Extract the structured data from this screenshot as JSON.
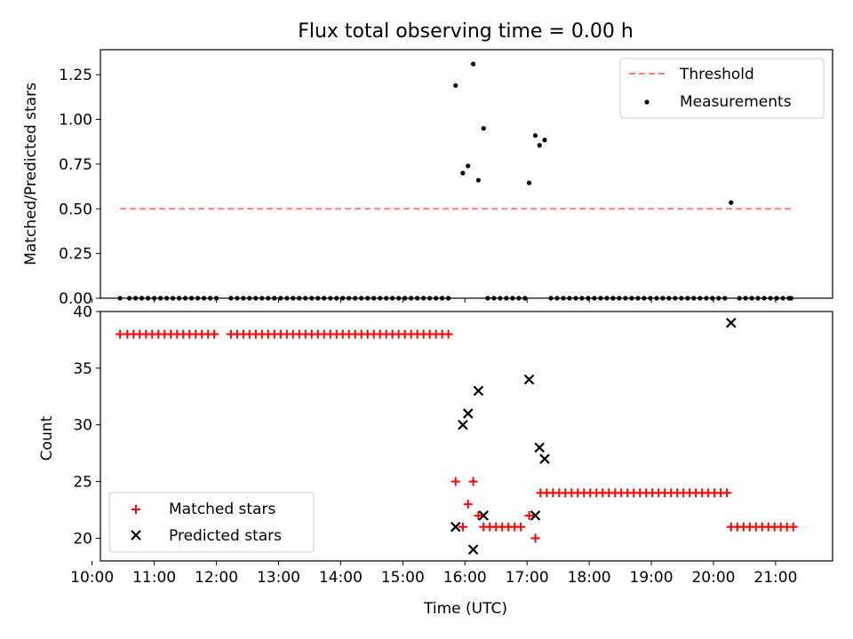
{
  "chart_data": [
    {
      "type": "scatter",
      "title": "Flux total observing time = 0.00 h",
      "xlabel": "",
      "ylabel": "Matched/Predicted stars",
      "ylim": [
        0,
        1.39
      ],
      "xlim": [
        "10:08",
        "21:55"
      ],
      "yticks": [
        "0.00",
        "0.25",
        "0.50",
        "0.75",
        "1.00",
        "1.25"
      ],
      "legend_position": "top-right",
      "series": [
        {
          "name": "Threshold",
          "style": "dashed-line",
          "color": "#ff7f7f",
          "points": [
            [
              "10:27",
              0.5
            ],
            [
              "21:15",
              0.5
            ]
          ]
        },
        {
          "name": "Measurements",
          "style": "dots",
          "color": "#000000",
          "points": [
            [
              "10:27",
              0
            ],
            [
              "10:36",
              0
            ],
            [
              "10:42",
              0
            ],
            [
              "10:48",
              0
            ],
            [
              "10:54",
              0
            ],
            [
              "11:00",
              0
            ],
            [
              "11:06",
              0
            ],
            [
              "11:12",
              0
            ],
            [
              "11:18",
              0
            ],
            [
              "11:24",
              0
            ],
            [
              "11:30",
              0
            ],
            [
              "11:36",
              0
            ],
            [
              "11:42",
              0
            ],
            [
              "11:48",
              0
            ],
            [
              "11:54",
              0
            ],
            [
              "12:00",
              0
            ],
            [
              "12:14",
              0
            ],
            [
              "12:20",
              0
            ],
            [
              "12:26",
              0
            ],
            [
              "12:32",
              0
            ],
            [
              "12:38",
              0
            ],
            [
              "12:44",
              0
            ],
            [
              "12:50",
              0
            ],
            [
              "12:56",
              0
            ],
            [
              "13:02",
              0
            ],
            [
              "13:08",
              0
            ],
            [
              "13:14",
              0
            ],
            [
              "13:20",
              0
            ],
            [
              "13:26",
              0
            ],
            [
              "13:32",
              0
            ],
            [
              "13:38",
              0
            ],
            [
              "13:44",
              0
            ],
            [
              "13:50",
              0
            ],
            [
              "13:56",
              0
            ],
            [
              "14:02",
              0
            ],
            [
              "14:08",
              0
            ],
            [
              "14:14",
              0
            ],
            [
              "14:20",
              0
            ],
            [
              "14:26",
              0
            ],
            [
              "14:32",
              0
            ],
            [
              "14:38",
              0
            ],
            [
              "14:44",
              0
            ],
            [
              "14:50",
              0
            ],
            [
              "14:56",
              0
            ],
            [
              "15:02",
              0
            ],
            [
              "15:08",
              0
            ],
            [
              "15:14",
              0
            ],
            [
              "15:20",
              0
            ],
            [
              "15:26",
              0
            ],
            [
              "15:32",
              0
            ],
            [
              "15:38",
              0
            ],
            [
              "15:44",
              0
            ],
            [
              "15:51",
              1.19
            ],
            [
              "15:58",
              0.7
            ],
            [
              "16:03",
              0.74
            ],
            [
              "16:08",
              1.31
            ],
            [
              "16:13",
              0.66
            ],
            [
              "16:18",
              0.95
            ],
            [
              "16:22",
              0
            ],
            [
              "16:28",
              0
            ],
            [
              "16:34",
              0
            ],
            [
              "16:40",
              0
            ],
            [
              "16:46",
              0
            ],
            [
              "16:52",
              0
            ],
            [
              "16:58",
              0
            ],
            [
              "17:02",
              0.645
            ],
            [
              "17:08",
              0.91
            ],
            [
              "17:12",
              0.855
            ],
            [
              "17:17",
              0.885
            ],
            [
              "17:23",
              0
            ],
            [
              "17:29",
              0
            ],
            [
              "17:35",
              0
            ],
            [
              "17:41",
              0
            ],
            [
              "17:47",
              0
            ],
            [
              "17:53",
              0
            ],
            [
              "17:59",
              0
            ],
            [
              "18:05",
              0
            ],
            [
              "18:11",
              0
            ],
            [
              "18:17",
              0
            ],
            [
              "18:23",
              0
            ],
            [
              "18:29",
              0
            ],
            [
              "18:35",
              0
            ],
            [
              "18:41",
              0
            ],
            [
              "18:47",
              0
            ],
            [
              "18:53",
              0
            ],
            [
              "18:59",
              0
            ],
            [
              "19:05",
              0
            ],
            [
              "19:11",
              0
            ],
            [
              "19:17",
              0
            ],
            [
              "19:23",
              0
            ],
            [
              "19:29",
              0
            ],
            [
              "19:35",
              0
            ],
            [
              "19:41",
              0
            ],
            [
              "19:47",
              0
            ],
            [
              "19:53",
              0
            ],
            [
              "19:59",
              0
            ],
            [
              "20:05",
              0
            ],
            [
              "20:11",
              0
            ],
            [
              "20:17",
              0.535
            ],
            [
              "20:25",
              0
            ],
            [
              "20:31",
              0
            ],
            [
              "20:37",
              0
            ],
            [
              "20:43",
              0
            ],
            [
              "20:49",
              0
            ],
            [
              "20:55",
              0
            ],
            [
              "21:01",
              0
            ],
            [
              "21:07",
              0
            ],
            [
              "21:13",
              0
            ],
            [
              "21:15",
              0
            ]
          ]
        }
      ]
    },
    {
      "type": "scatter",
      "title": "",
      "xlabel": "Time (UTC)",
      "ylabel": "Count",
      "ylim": [
        18,
        40
      ],
      "xlim": [
        "10:08",
        "21:55"
      ],
      "xticks": [
        "10:00",
        "11:00",
        "12:00",
        "13:00",
        "14:00",
        "15:00",
        "16:00",
        "17:00",
        "18:00",
        "19:00",
        "20:00",
        "21:00"
      ],
      "yticks": [
        "20",
        "25",
        "30",
        "35",
        "40"
      ],
      "legend_position": "bottom-left",
      "series": [
        {
          "name": "Matched stars",
          "style": "plus",
          "color": "#ff0000",
          "points": [
            [
              "10:27",
              38
            ],
            [
              "10:34",
              38
            ],
            [
              "10:40",
              38
            ],
            [
              "10:46",
              38
            ],
            [
              "10:52",
              38
            ],
            [
              "10:58",
              38
            ],
            [
              "11:04",
              38
            ],
            [
              "11:10",
              38
            ],
            [
              "11:16",
              38
            ],
            [
              "11:22",
              38
            ],
            [
              "11:28",
              38
            ],
            [
              "11:34",
              38
            ],
            [
              "11:40",
              38
            ],
            [
              "11:46",
              38
            ],
            [
              "11:52",
              38
            ],
            [
              "11:58",
              38
            ],
            [
              "12:14",
              38
            ],
            [
              "12:20",
              38
            ],
            [
              "12:26",
              38
            ],
            [
              "12:32",
              38
            ],
            [
              "12:38",
              38
            ],
            [
              "12:44",
              38
            ],
            [
              "12:50",
              38
            ],
            [
              "12:56",
              38
            ],
            [
              "13:02",
              38
            ],
            [
              "13:08",
              38
            ],
            [
              "13:14",
              38
            ],
            [
              "13:20",
              38
            ],
            [
              "13:26",
              38
            ],
            [
              "13:32",
              38
            ],
            [
              "13:38",
              38
            ],
            [
              "13:44",
              38
            ],
            [
              "13:50",
              38
            ],
            [
              "13:56",
              38
            ],
            [
              "14:02",
              38
            ],
            [
              "14:08",
              38
            ],
            [
              "14:14",
              38
            ],
            [
              "14:20",
              38
            ],
            [
              "14:26",
              38
            ],
            [
              "14:32",
              38
            ],
            [
              "14:38",
              38
            ],
            [
              "14:44",
              38
            ],
            [
              "14:50",
              38
            ],
            [
              "14:56",
              38
            ],
            [
              "15:02",
              38
            ],
            [
              "15:08",
              38
            ],
            [
              "15:14",
              38
            ],
            [
              "15:20",
              38
            ],
            [
              "15:26",
              38
            ],
            [
              "15:32",
              38
            ],
            [
              "15:38",
              38
            ],
            [
              "15:44",
              38
            ],
            [
              "15:51",
              25
            ],
            [
              "15:58",
              21
            ],
            [
              "16:03",
              23
            ],
            [
              "16:08",
              25
            ],
            [
              "16:13",
              22
            ],
            [
              "16:18",
              21
            ],
            [
              "16:24",
              21
            ],
            [
              "16:30",
              21
            ],
            [
              "16:36",
              21
            ],
            [
              "16:42",
              21
            ],
            [
              "16:48",
              21
            ],
            [
              "16:54",
              21
            ],
            [
              "17:02",
              22
            ],
            [
              "17:08",
              20
            ],
            [
              "17:13",
              24
            ],
            [
              "17:19",
              24
            ],
            [
              "17:25",
              24
            ],
            [
              "17:31",
              24
            ],
            [
              "17:37",
              24
            ],
            [
              "17:43",
              24
            ],
            [
              "17:49",
              24
            ],
            [
              "17:55",
              24
            ],
            [
              "18:01",
              24
            ],
            [
              "18:07",
              24
            ],
            [
              "18:13",
              24
            ],
            [
              "18:19",
              24
            ],
            [
              "18:25",
              24
            ],
            [
              "18:31",
              24
            ],
            [
              "18:37",
              24
            ],
            [
              "18:43",
              24
            ],
            [
              "18:49",
              24
            ],
            [
              "18:55",
              24
            ],
            [
              "19:01",
              24
            ],
            [
              "19:07",
              24
            ],
            [
              "19:13",
              24
            ],
            [
              "19:19",
              24
            ],
            [
              "19:25",
              24
            ],
            [
              "19:31",
              24
            ],
            [
              "19:37",
              24
            ],
            [
              "19:43",
              24
            ],
            [
              "19:49",
              24
            ],
            [
              "19:55",
              24
            ],
            [
              "20:01",
              24
            ],
            [
              "20:07",
              24
            ],
            [
              "20:13",
              24
            ],
            [
              "20:17",
              21
            ],
            [
              "20:23",
              21
            ],
            [
              "20:29",
              21
            ],
            [
              "20:35",
              21
            ],
            [
              "20:41",
              21
            ],
            [
              "20:47",
              21
            ],
            [
              "20:53",
              21
            ],
            [
              "20:59",
              21
            ],
            [
              "21:05",
              21
            ],
            [
              "21:11",
              21
            ],
            [
              "21:17",
              21
            ]
          ]
        },
        {
          "name": "Predicted stars",
          "style": "x",
          "color": "#000000",
          "points": [
            [
              "15:51",
              21
            ],
            [
              "15:58",
              30
            ],
            [
              "16:03",
              31
            ],
            [
              "16:08",
              19
            ],
            [
              "16:13",
              33
            ],
            [
              "16:18",
              22
            ],
            [
              "17:02",
              34
            ],
            [
              "17:08",
              22
            ],
            [
              "17:12",
              28
            ],
            [
              "17:17",
              27
            ],
            [
              "20:17",
              39
            ]
          ]
        }
      ]
    }
  ]
}
